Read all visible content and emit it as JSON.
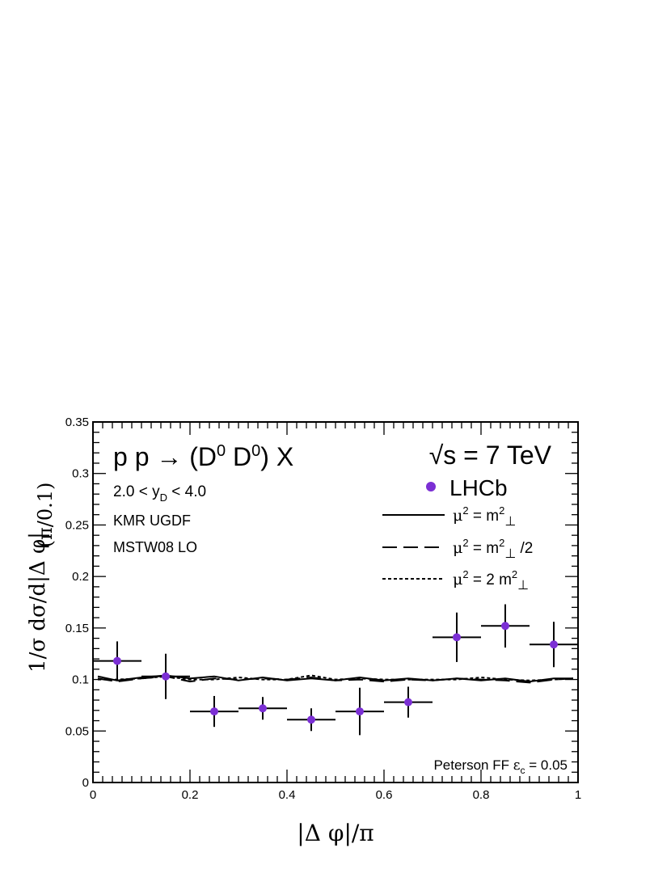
{
  "chart_data": {
    "type": "scatter",
    "title": "p p → (D⁰ D⁰) X",
    "energy_label": "√s = 7 TeV",
    "xlabel": "|Δ φ|/π",
    "ylabel": "1/σ dσ/d|Δ φ|",
    "ylabel_unit": "(π/0.1)",
    "xlim": [
      0,
      1
    ],
    "ylim": [
      0,
      0.35
    ],
    "x_ticks": [
      "0",
      "0.2",
      "0.4",
      "0.6",
      "0.8",
      "1"
    ],
    "y_ticks": [
      "0",
      "0.05",
      "0.1",
      "0.15",
      "0.2",
      "0.25",
      "0.3",
      "0.35"
    ],
    "annotations": {
      "rapidity": "2.0 < y_D < 4.0",
      "ugdf": "KMR UGDF",
      "pdf": "MSTW08 LO",
      "ff": "Peterson FF  ε_c = 0.05"
    },
    "legend": {
      "position": "top-right",
      "data_label": "LHCb",
      "entries": [
        {
          "style": "solid",
          "label": "μ² = m²⊥"
        },
        {
          "style": "dashed",
          "label": "μ² = m²⊥ /2"
        },
        {
          "style": "dotted",
          "label": "μ² = 2 m²⊥"
        }
      ]
    },
    "data_series": {
      "name": "LHCb",
      "color": "#7b2fd4",
      "points": [
        {
          "x": 0.05,
          "y": 0.118,
          "xerr": 0.05,
          "yerr": 0.019
        },
        {
          "x": 0.15,
          "y": 0.103,
          "xerr": 0.05,
          "yerr": 0.022
        },
        {
          "x": 0.25,
          "y": 0.069,
          "xerr": 0.05,
          "yerr": 0.015
        },
        {
          "x": 0.35,
          "y": 0.072,
          "xerr": 0.05,
          "yerr": 0.011
        },
        {
          "x": 0.45,
          "y": 0.061,
          "xerr": 0.05,
          "yerr": 0.011
        },
        {
          "x": 0.55,
          "y": 0.069,
          "xerr": 0.05,
          "yerr": 0.023
        },
        {
          "x": 0.65,
          "y": 0.078,
          "xerr": 0.05,
          "yerr": 0.015
        },
        {
          "x": 0.75,
          "y": 0.141,
          "xerr": 0.05,
          "yerr": 0.024
        },
        {
          "x": 0.85,
          "y": 0.152,
          "xerr": 0.05,
          "yerr": 0.021
        },
        {
          "x": 0.95,
          "y": 0.134,
          "xerr": 0.05,
          "yerr": 0.022
        }
      ]
    },
    "theory_series": [
      {
        "style": "solid",
        "x": [
          0.01,
          0.05,
          0.1,
          0.15,
          0.2,
          0.25,
          0.3,
          0.35,
          0.4,
          0.45,
          0.5,
          0.55,
          0.6,
          0.65,
          0.7,
          0.75,
          0.8,
          0.85,
          0.9,
          0.95,
          0.99
        ],
        "y": [
          0.103,
          0.099,
          0.102,
          0.104,
          0.101,
          0.103,
          0.099,
          0.102,
          0.099,
          0.101,
          0.099,
          0.102,
          0.099,
          0.101,
          0.099,
          0.101,
          0.099,
          0.101,
          0.098,
          0.101,
          0.101
        ]
      },
      {
        "style": "dashed",
        "x": [
          0.01,
          0.05,
          0.1,
          0.15,
          0.2,
          0.25,
          0.3,
          0.35,
          0.4,
          0.45,
          0.5,
          0.55,
          0.6,
          0.65,
          0.7,
          0.75,
          0.8,
          0.85,
          0.9,
          0.95,
          0.99
        ],
        "y": [
          0.101,
          0.098,
          0.101,
          0.103,
          0.098,
          0.101,
          0.1,
          0.101,
          0.1,
          0.102,
          0.099,
          0.1,
          0.098,
          0.1,
          0.099,
          0.101,
          0.1,
          0.099,
          0.097,
          0.1,
          0.101
        ]
      },
      {
        "style": "dotted",
        "x": [
          0.01,
          0.05,
          0.1,
          0.15,
          0.2,
          0.25,
          0.3,
          0.35,
          0.4,
          0.45,
          0.5,
          0.55,
          0.6,
          0.65,
          0.7,
          0.75,
          0.8,
          0.85,
          0.9,
          0.95,
          0.99
        ],
        "y": [
          0.1,
          0.1,
          0.101,
          0.103,
          0.1,
          0.1,
          0.102,
          0.1,
          0.1,
          0.104,
          0.1,
          0.101,
          0.1,
          0.1,
          0.1,
          0.1,
          0.102,
          0.1,
          0.099,
          0.1,
          0.101
        ]
      }
    ]
  }
}
